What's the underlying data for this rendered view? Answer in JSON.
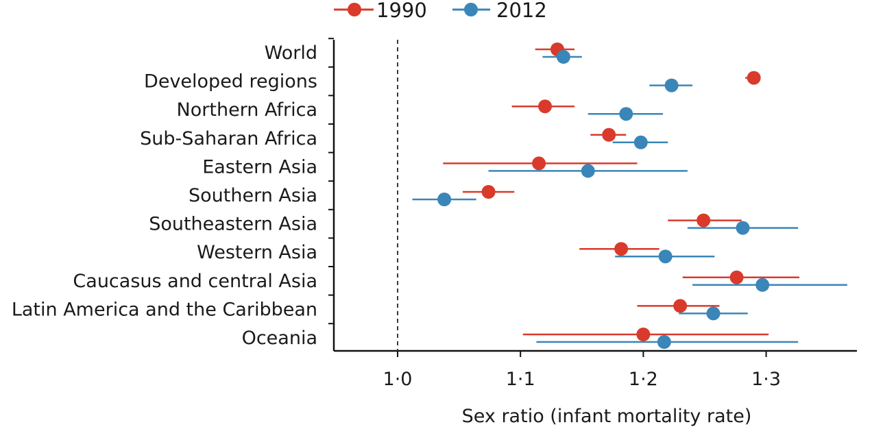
{
  "chart_data": {
    "type": "scatter",
    "title": "",
    "xlabel": "Sex ratio (infant mortality rate)",
    "ylabel": "",
    "xlim": [
      0.95,
      1.37
    ],
    "x_ticks": [
      1.0,
      1.1,
      1.2,
      1.3
    ],
    "x_tick_labels": [
      "1·0",
      "1·1",
      "1·2",
      "1·3"
    ],
    "reference_line": 1.0,
    "legend_position": "top",
    "categories": [
      "World",
      "Developed regions",
      "Northern Africa",
      "Sub-Saharan Africa",
      "Eastern Asia",
      "Southern Asia",
      "Southeastern Asia",
      "Western Asia",
      "Caucasus and central Asia",
      "Latin America and the Caribbean",
      "Oceania"
    ],
    "series": [
      {
        "name": "1990",
        "color": "#d93a2b",
        "values": [
          1.13,
          1.29,
          1.12,
          1.172,
          1.115,
          1.074,
          1.249,
          1.182,
          1.276,
          1.23,
          1.2
        ],
        "ci_low": [
          1.112,
          1.283,
          1.093,
          1.157,
          1.037,
          1.053,
          1.22,
          1.148,
          1.232,
          1.195,
          1.102
        ],
        "ci_high": [
          1.144,
          1.294,
          1.144,
          1.186,
          1.195,
          1.095,
          1.28,
          1.213,
          1.327,
          1.262,
          1.302
        ]
      },
      {
        "name": "2012",
        "color": "#3a86b8",
        "values": [
          1.135,
          1.223,
          1.186,
          1.198,
          1.155,
          1.038,
          1.281,
          1.218,
          1.297,
          1.257,
          1.217
        ],
        "ci_low": [
          1.118,
          1.205,
          1.155,
          1.175,
          1.074,
          1.012,
          1.236,
          1.177,
          1.24,
          1.229,
          1.113
        ],
        "ci_high": [
          1.15,
          1.24,
          1.216,
          1.22,
          1.236,
          1.064,
          1.326,
          1.258,
          1.366,
          1.285,
          1.326
        ]
      }
    ]
  }
}
